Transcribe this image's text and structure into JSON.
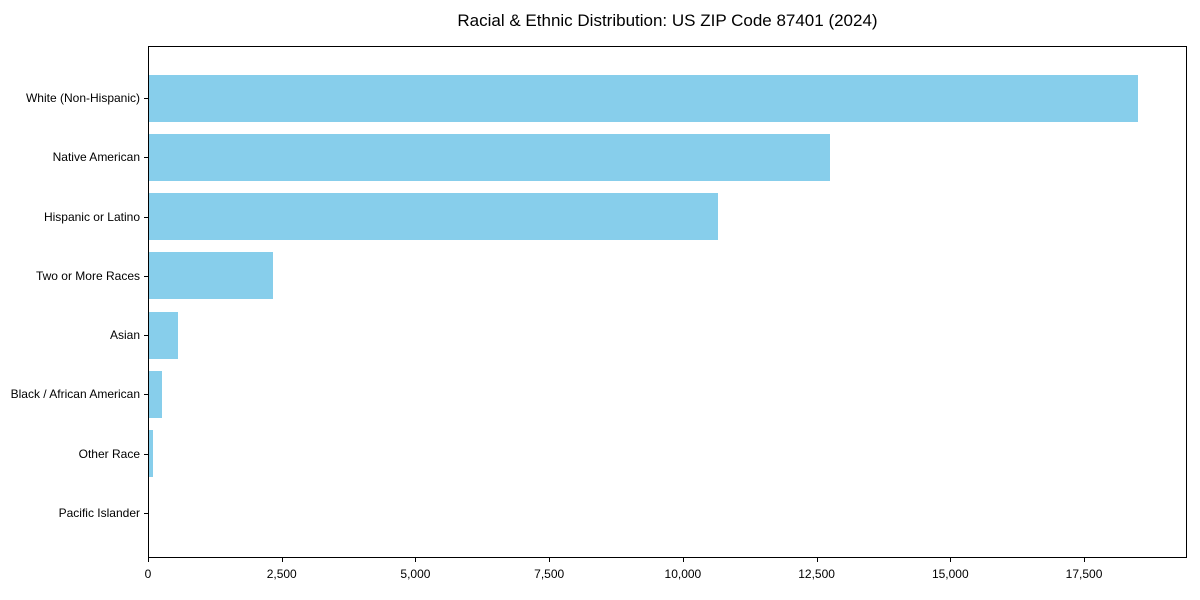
{
  "title": "Racial & Ethnic Distribution: US ZIP Code 87401 (2024)",
  "chart_data": {
    "type": "bar",
    "orientation": "horizontal",
    "title": "Racial & Ethnic Distribution: US ZIP Code 87401 (2024)",
    "xlabel": "",
    "ylabel": "",
    "categories": [
      "White (Non-Hispanic)",
      "Native American",
      "Hispanic or Latino",
      "Two or More Races",
      "Asian",
      "Black / African American",
      "Other Race",
      "Pacific Islander"
    ],
    "values": [
      18500,
      12750,
      10650,
      2340,
      560,
      260,
      90,
      15
    ],
    "bar_color": "#87CEEB",
    "xlim": [
      0,
      19425
    ],
    "x_ticks": [
      0,
      2500,
      5000,
      7500,
      10000,
      12500,
      15000,
      17500
    ],
    "x_tick_labels": [
      "0",
      "2,500",
      "5,000",
      "7,500",
      "10,000",
      "12,500",
      "15,000",
      "17,500"
    ],
    "grid": false,
    "legend": null,
    "frame": "full-box"
  }
}
